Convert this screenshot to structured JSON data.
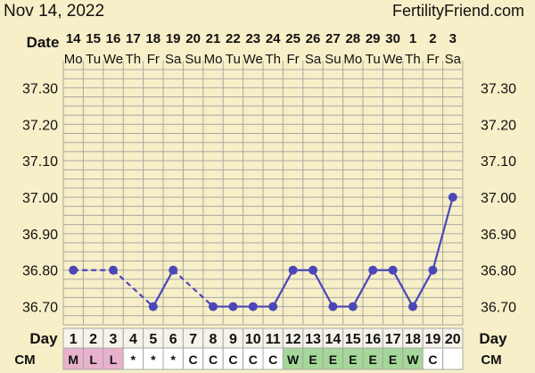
{
  "header": {
    "date": "Nov 14, 2022",
    "site": "FertilityFriend.com"
  },
  "labels": {
    "date_row": "Date",
    "day_row": "Day",
    "cm_row": "CM"
  },
  "colors": {
    "background": "#f7efc8",
    "grid": "#a9a8a2",
    "line": "#4c47b8",
    "menses_cell": "#e8b2cc",
    "egg_white_cell": "#a5d79a",
    "plain_cell": "#ffffff"
  },
  "chart_data": {
    "type": "line",
    "title": "",
    "xlabel": "",
    "ylabel": "",
    "ylim": [
      36.65,
      37.35
    ],
    "y_ticks": [
      "37.30",
      "37.20",
      "37.10",
      "37.00",
      "36.90",
      "36.80",
      "36.70"
    ],
    "dates": [
      "14",
      "15",
      "16",
      "17",
      "18",
      "19",
      "20",
      "21",
      "22",
      "23",
      "24",
      "25",
      "26",
      "27",
      "28",
      "29",
      "30",
      "1",
      "2",
      "3"
    ],
    "weekdays": [
      "Mo",
      "Tu",
      "We",
      "Th",
      "Fr",
      "Sa",
      "Su",
      "Mo",
      "Tu",
      "We",
      "Th",
      "Fr",
      "Sa",
      "Su",
      "Mo",
      "Tu",
      "We",
      "Th",
      "Fr",
      "Sa"
    ],
    "days": [
      1,
      2,
      3,
      4,
      5,
      6,
      7,
      8,
      9,
      10,
      11,
      12,
      13,
      14,
      15,
      16,
      17,
      18,
      19,
      20
    ],
    "temperature": [
      36.8,
      null,
      36.8,
      null,
      36.7,
      36.8,
      null,
      36.7,
      36.7,
      36.7,
      36.7,
      36.8,
      36.8,
      36.7,
      36.7,
      36.8,
      36.8,
      36.7,
      36.8,
      37.0
    ],
    "cervical_mucus": [
      "M",
      "L",
      "L",
      "*",
      "*",
      "*",
      "C",
      "C",
      "C",
      "C",
      "C",
      "W",
      "E",
      "E",
      "E",
      "E",
      "E",
      "W",
      "C",
      ""
    ]
  }
}
